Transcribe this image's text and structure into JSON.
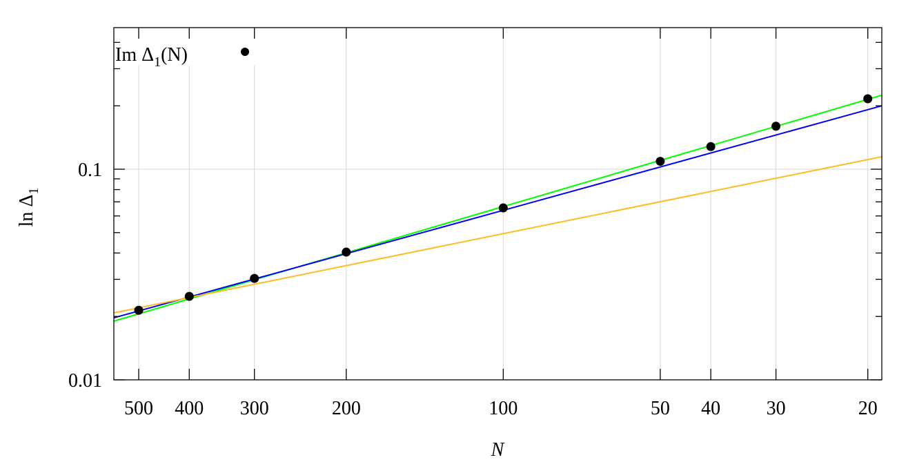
{
  "chart_data": {
    "type": "scatter",
    "xlabel": "N",
    "ylabel": "ln Δ",
    "ylabel_sub": "1",
    "x_scale": "log of 1/N (N decreasing to the right)",
    "y_scale": "log",
    "xlim": [
      558,
      18.8
    ],
    "ylim": [
      0.01,
      0.47
    ],
    "x_ticks": [
      500,
      400,
      300,
      200,
      100,
      50,
      40,
      30,
      20
    ],
    "x_tick_labels": [
      "500",
      "400",
      "300",
      "200",
      "100",
      "50",
      "40",
      "30",
      "20"
    ],
    "y_ticks": [
      0.01,
      0.1
    ],
    "y_tick_labels": [
      "0.01",
      "0.1"
    ],
    "grid": true,
    "legend": {
      "placement": "top-left",
      "label": "Im Δ",
      "label_sub": "1",
      "label_suffix": "(N)"
    },
    "points": {
      "name": "Im Δ1(N)",
      "color": "#000000",
      "x": [
        500,
        400,
        300,
        200,
        100,
        50,
        40,
        30,
        20
      ],
      "y": [
        0.0214,
        0.0249,
        0.0303,
        0.0404,
        0.0655,
        0.109,
        0.128,
        0.16,
        0.216
      ]
    },
    "fit_lines": [
      {
        "color": "#00ff00",
        "x": [
          558,
          18.8
        ],
        "y": [
          0.019,
          0.2245
        ]
      },
      {
        "color": "#0000ff",
        "x": [
          558,
          18.8
        ],
        "y": [
          0.0197,
          0.2
        ]
      },
      {
        "color": "#ffbb22",
        "x": [
          558,
          18.8
        ],
        "y": [
          0.0208,
          0.1146
        ]
      }
    ]
  }
}
